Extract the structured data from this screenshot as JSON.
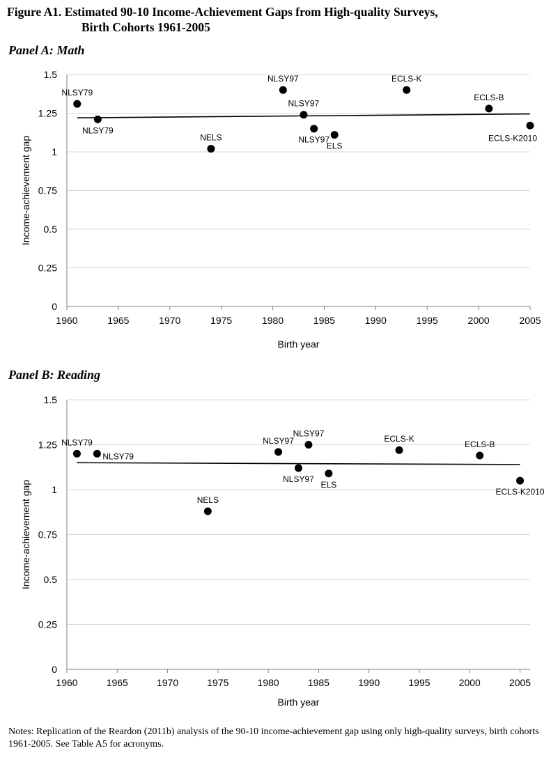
{
  "figure": {
    "title_line1": "Figure A1.  Estimated 90-10 Income-Achievement Gaps from High-quality Surveys,",
    "title_line2": "Birth Cohorts 1961-2005",
    "notes": "Notes:  Replication of the Reardon (2011b) analysis of the 90-10 income-achievement gap using only high-quality surveys, birth cohorts 1961-2005.  See Table A5 for acronyms."
  },
  "chart_data": [
    {
      "id": "panelA",
      "panel_title": "Panel A: Math",
      "type": "scatter",
      "xlabel": "Birth year",
      "ylabel": "Income-achievement gap",
      "xlim": [
        1960,
        2005
      ],
      "ylim": [
        0,
        1.5
      ],
      "xticks": [
        "1960",
        "1965",
        "1970",
        "1975",
        "1980",
        "1985",
        "1990",
        "1995",
        "2000",
        "2005"
      ],
      "yticks": [
        "0",
        "0.25",
        "0.5",
        "0.75",
        "1",
        "1.25",
        "1.5"
      ],
      "grid": true,
      "points": [
        {
          "x": 1961,
          "y": 1.31,
          "label": "NLSY79",
          "label_pos": "above"
        },
        {
          "x": 1963,
          "y": 1.21,
          "label": "NLSY79",
          "label_pos": "below"
        },
        {
          "x": 1974,
          "y": 1.02,
          "label": "NELS",
          "label_pos": "above"
        },
        {
          "x": 1981,
          "y": 1.4,
          "label": "NLSY97",
          "label_pos": "above"
        },
        {
          "x": 1983,
          "y": 1.24,
          "label": "NLSY97",
          "label_pos": "above"
        },
        {
          "x": 1984,
          "y": 1.15,
          "label": "NLSY97",
          "label_pos": "below"
        },
        {
          "x": 1986,
          "y": 1.11,
          "label": "ELS",
          "label_pos": "below"
        },
        {
          "x": 1993,
          "y": 1.4,
          "label": "ECLS-K",
          "label_pos": "above"
        },
        {
          "x": 2001,
          "y": 1.28,
          "label": "ECLS-B",
          "label_pos": "above"
        },
        {
          "x": 2005,
          "y": 1.17,
          "label": "ECLS-K2010",
          "label_pos": "below-left"
        }
      ],
      "trend": {
        "x": [
          1961,
          2005
        ],
        "y": [
          1.22,
          1.245
        ]
      }
    },
    {
      "id": "panelB",
      "panel_title": "Panel B: Reading",
      "type": "scatter",
      "xlabel": "Birth year",
      "ylabel": "Income-achievement gap",
      "xlim": [
        1960,
        2006
      ],
      "ylim": [
        0,
        1.5
      ],
      "xticks": [
        "1960",
        "1965",
        "1970",
        "1975",
        "1980",
        "1985",
        "1990",
        "1995",
        "2000",
        "2005"
      ],
      "yticks": [
        "0",
        "0.25",
        "0.5",
        "0.75",
        "1",
        "1.25",
        "1.5"
      ],
      "grid": true,
      "points": [
        {
          "x": 1961,
          "y": 1.2,
          "label": "NLSY79",
          "label_pos": "above"
        },
        {
          "x": 1963,
          "y": 1.2,
          "label": "NLSY79",
          "label_pos": "right"
        },
        {
          "x": 1974,
          "y": 0.88,
          "label": "NELS",
          "label_pos": "above"
        },
        {
          "x": 1981,
          "y": 1.21,
          "label": "NLSY97",
          "label_pos": "above"
        },
        {
          "x": 1983,
          "y": 1.12,
          "label": "NLSY97",
          "label_pos": "below"
        },
        {
          "x": 1984,
          "y": 1.25,
          "label": "NLSY97",
          "label_pos": "above"
        },
        {
          "x": 1986,
          "y": 1.09,
          "label": "ELS",
          "label_pos": "below"
        },
        {
          "x": 1993,
          "y": 1.22,
          "label": "ECLS-K",
          "label_pos": "above"
        },
        {
          "x": 2001,
          "y": 1.19,
          "label": "ECLS-B",
          "label_pos": "above"
        },
        {
          "x": 2005,
          "y": 1.05,
          "label": "ECLS-K2010",
          "label_pos": "below"
        }
      ],
      "trend": {
        "x": [
          1961,
          2005
        ],
        "y": [
          1.15,
          1.14
        ]
      }
    }
  ]
}
